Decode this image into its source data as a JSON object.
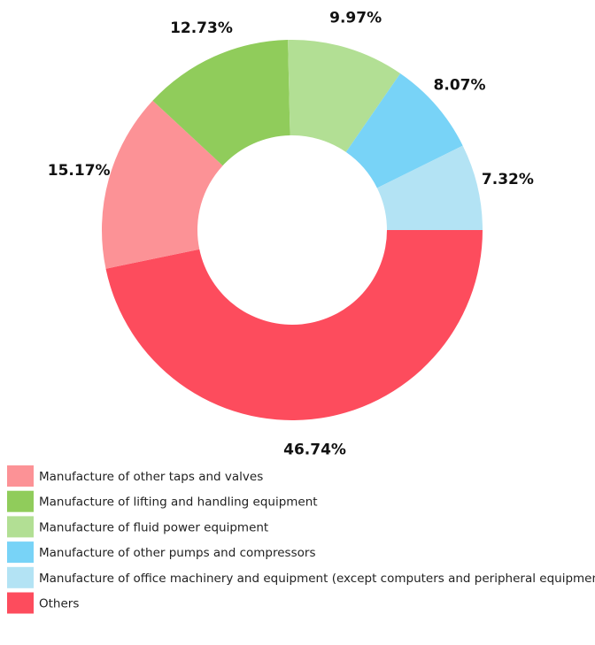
{
  "chart_data": {
    "type": "donut",
    "categories": [
      "Manufacture of other taps and valves",
      "Manufacture of lifting and handling equipment",
      "Manufacture of fluid power equipment",
      "Manufacture of other pumps and compressors",
      "Manufacture of office machinery and equipment (except computers and peripheral equipment)",
      "Others"
    ],
    "values": [
      15.17,
      12.73,
      9.97,
      8.07,
      7.32,
      46.74
    ],
    "value_labels": [
      "15.17%",
      "12.73%",
      "9.97%",
      "8.07%",
      "7.32%",
      "46.74%"
    ],
    "colors": [
      "#fc9296",
      "#90cc5b",
      "#b2df94",
      "#78d3f7",
      "#b3e3f4",
      "#fd4c5d"
    ],
    "legend": "bottom-left"
  }
}
